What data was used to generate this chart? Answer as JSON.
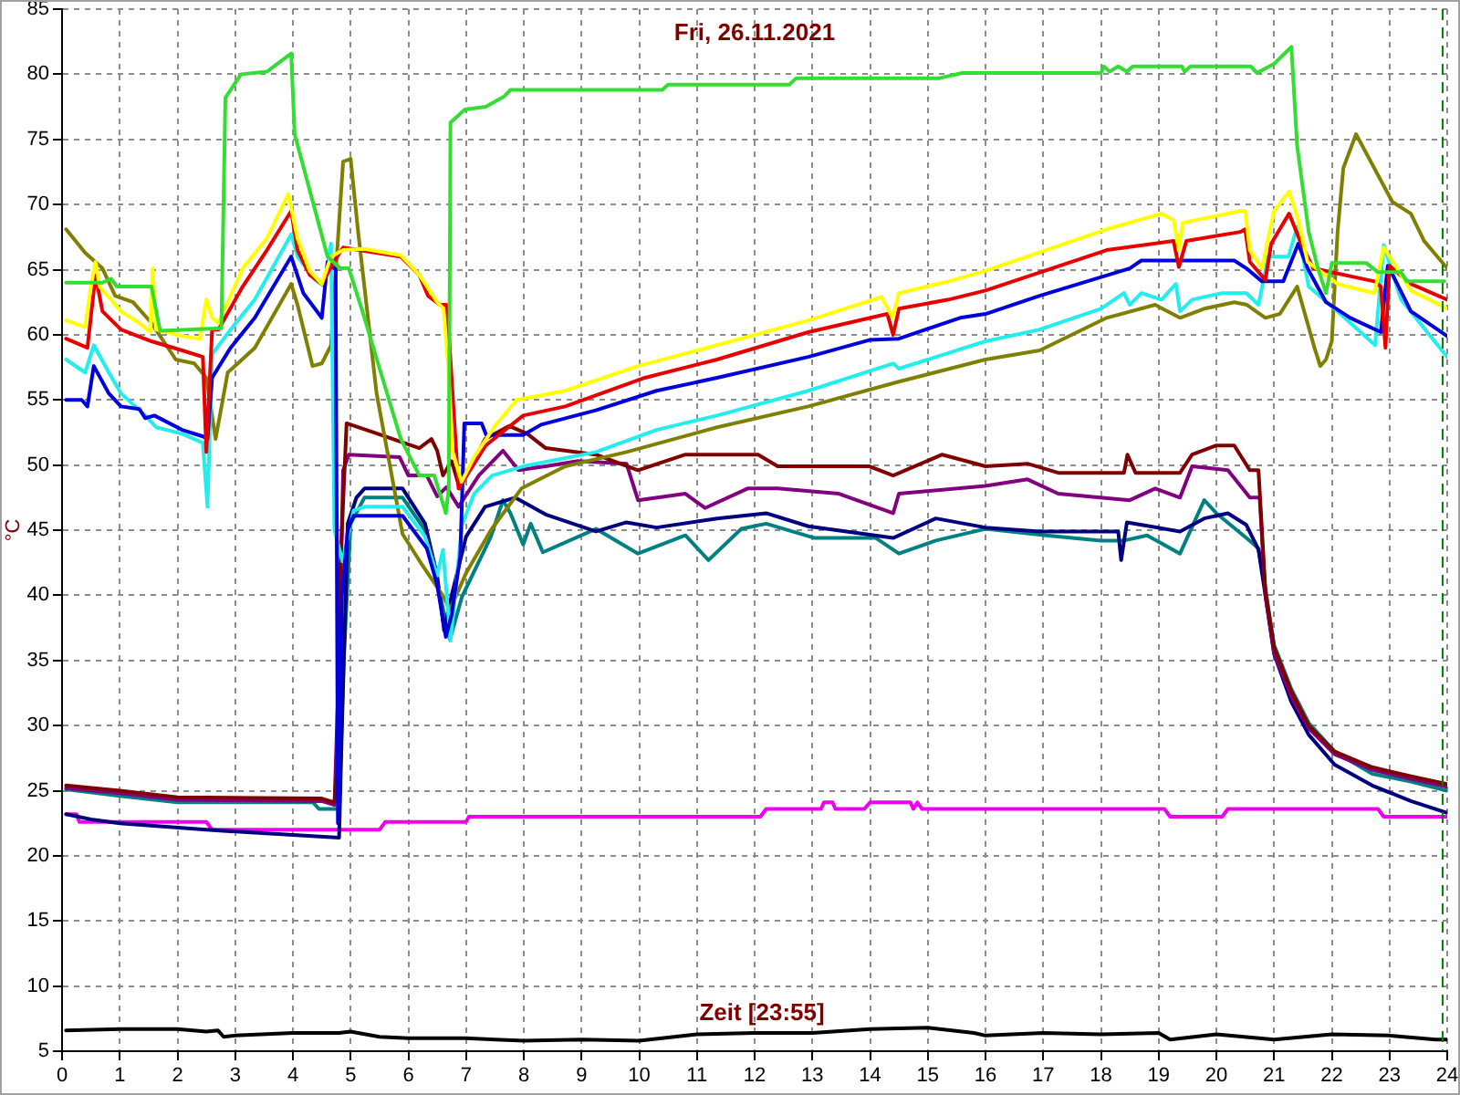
{
  "chart_data": {
    "type": "line",
    "title": "Fri, 26.11.2021",
    "xlabel": "Zeit [23:55]",
    "ylabel": "°C",
    "xlim": [
      0,
      24
    ],
    "ylim": [
      5,
      85
    ],
    "xticks": [
      0,
      1,
      2,
      3,
      4,
      5,
      6,
      7,
      8,
      9,
      10,
      11,
      12,
      13,
      14,
      15,
      16,
      17,
      18,
      19,
      20,
      21,
      22,
      23,
      24
    ],
    "yticks": [
      5,
      10,
      15,
      20,
      25,
      30,
      35,
      40,
      45,
      50,
      55,
      60,
      65,
      70,
      75,
      80,
      85
    ],
    "grid": true,
    "ref_lines": [
      {
        "axis": "x",
        "value": 23.92,
        "color": "#008000",
        "line_style": "dashed"
      }
    ],
    "series": [
      {
        "color": "#33dd33",
        "x": [
          0.07,
          0.7,
          0.85,
          0.95,
          1.55,
          1.7,
          2.76,
          2.83,
          3.1,
          3.55,
          3.7,
          3.97,
          4.03,
          4.4,
          4.6,
          4.82,
          4.97,
          5.24,
          5.55,
          5.87,
          6.19,
          6.45,
          6.65,
          6.7,
          6.73,
          6.98,
          7.34,
          7.66,
          7.77,
          10.4,
          10.5,
          12.6,
          12.72,
          15.2,
          15.6,
          18.0,
          18.05,
          18.15,
          18.3,
          18.45,
          18.55,
          19.4,
          19.45,
          19.55,
          20.6,
          20.7,
          21.0,
          21.3,
          21.4,
          21.6,
          21.76,
          21.9,
          22.0,
          22.6,
          22.8,
          23.2,
          23.3,
          23.95
        ],
        "values": [
          64.0,
          64.0,
          64.3,
          63.7,
          63.7,
          60.3,
          60.5,
          78.2,
          80.0,
          80.2,
          80.7,
          81.6,
          75.4,
          69.3,
          66.0,
          65.1,
          65.1,
          61.3,
          56.7,
          52.0,
          49.2,
          49.2,
          46.3,
          48.2,
          76.3,
          77.3,
          77.5,
          78.3,
          78.8,
          78.8,
          79.2,
          79.2,
          79.7,
          79.7,
          80.1,
          80.1,
          80.6,
          80.2,
          80.6,
          80.2,
          80.6,
          80.6,
          80.2,
          80.6,
          80.6,
          80.1,
          80.8,
          82.1,
          74.5,
          67.9,
          65.1,
          63.2,
          65.5,
          65.5,
          64.8,
          64.8,
          64.1,
          64.1
        ]
      },
      {
        "color": "#ffff00",
        "x": [
          0.07,
          0.4,
          0.5,
          0.58,
          0.65,
          1.02,
          1.34,
          1.53,
          1.57,
          1.63,
          2.08,
          2.39,
          2.5,
          2.6,
          2.71,
          3.13,
          3.55,
          3.92,
          4.08,
          4.29,
          4.5,
          4.66,
          4.87,
          5.24,
          5.87,
          6.19,
          6.5,
          6.61,
          6.69,
          6.77,
          6.92,
          7.14,
          7.5,
          7.88,
          8.72,
          9.98,
          11.35,
          12.93,
          14.2,
          14.39,
          14.5,
          15.36,
          16.0,
          18.1,
          19.05,
          19.26,
          19.35,
          19.42,
          20.42,
          20.5,
          20.58,
          20.79,
          21.0,
          21.26,
          21.42,
          21.58,
          22.1,
          22.74,
          22.9,
          23.06,
          23.37,
          24
        ],
        "values": [
          61.1,
          60.6,
          63.7,
          65.6,
          63.7,
          61.8,
          60.9,
          60.2,
          65.1,
          60.4,
          59.9,
          59.7,
          62.7,
          61.3,
          60.9,
          65.1,
          67.4,
          70.8,
          67.4,
          64.9,
          63.9,
          66.0,
          66.5,
          66.6,
          66.1,
          64.6,
          62.5,
          62.0,
          57.6,
          51.0,
          48.7,
          50.6,
          53.0,
          55.0,
          55.7,
          57.6,
          59.2,
          61.1,
          62.9,
          61.3,
          63.2,
          64.1,
          64.9,
          68.1,
          69.3,
          68.8,
          66.5,
          68.6,
          69.5,
          69.5,
          66.5,
          65.1,
          69.5,
          71.0,
          68.8,
          65.6,
          63.9,
          63.2,
          66.7,
          65.6,
          63.4,
          62.0
        ]
      },
      {
        "color": "#e60000",
        "x": [
          0.07,
          0.44,
          0.58,
          0.7,
          1.02,
          1.55,
          2.08,
          2.44,
          2.5,
          2.6,
          2.71,
          3.13,
          3.55,
          3.97,
          4.08,
          4.29,
          4.5,
          4.71,
          4.87,
          5.87,
          6.19,
          6.34,
          6.55,
          6.66,
          6.71,
          6.87,
          7.14,
          7.34,
          7.99,
          8.72,
          10.1,
          11.35,
          12.93,
          14.3,
          14.4,
          14.5,
          15.36,
          16.0,
          18.1,
          19.26,
          19.35,
          19.48,
          20.42,
          20.5,
          20.58,
          20.85,
          20.95,
          21.26,
          21.47,
          21.68,
          22.74,
          22.85,
          22.93,
          23.0,
          23.37,
          24
        ],
        "values": [
          59.7,
          59.0,
          64.6,
          61.8,
          60.4,
          59.5,
          58.8,
          58.3,
          51.0,
          60.4,
          60.4,
          63.7,
          66.5,
          69.5,
          66.5,
          64.6,
          63.9,
          65.6,
          66.7,
          66.0,
          64.6,
          63.0,
          62.3,
          62.3,
          59.5,
          48.2,
          50.1,
          51.5,
          53.8,
          54.5,
          56.7,
          58.1,
          60.2,
          61.6,
          60.0,
          62.0,
          62.7,
          63.4,
          66.5,
          67.2,
          65.2,
          67.2,
          67.9,
          68.1,
          65.6,
          64.2,
          67.0,
          69.3,
          67.0,
          65.1,
          64.1,
          63.7,
          59.0,
          65.3,
          63.9,
          62.7
        ]
      },
      {
        "color": "#0000dd",
        "x": [
          0.07,
          0.34,
          0.44,
          0.55,
          0.81,
          1.02,
          1.34,
          1.44,
          1.6,
          2.08,
          2.44,
          2.52,
          2.6,
          2.92,
          3.34,
          3.97,
          4.18,
          4.5,
          4.6,
          4.74,
          4.78,
          4.85,
          4.95,
          5.05,
          5.9,
          6.32,
          6.5,
          6.65,
          6.75,
          6.9,
          6.97,
          7.27,
          7.35,
          7.99,
          8.3,
          9.25,
          10.3,
          11.35,
          12.93,
          13.99,
          14.5,
          15.56,
          16.0,
          16.94,
          18.5,
          18.7,
          20.31,
          20.52,
          20.79,
          21.16,
          21.42,
          21.58,
          21.9,
          22.32,
          22.85,
          22.97,
          23.1,
          23.37,
          24
        ],
        "values": [
          55.0,
          55.0,
          54.5,
          57.6,
          55.5,
          54.5,
          54.3,
          53.6,
          53.8,
          52.7,
          52.2,
          52.0,
          56.7,
          59.0,
          61.3,
          66.0,
          63.2,
          61.3,
          65.6,
          65.0,
          22.5,
          40.0,
          45.0,
          46.1,
          46.1,
          43.6,
          40.8,
          36.8,
          38.5,
          43.0,
          53.2,
          53.2,
          52.3,
          52.3,
          53.1,
          54.2,
          55.7,
          56.7,
          58.3,
          59.6,
          59.7,
          61.3,
          61.6,
          63.0,
          65.1,
          65.7,
          65.7,
          65.1,
          64.1,
          64.1,
          67.0,
          65.1,
          62.5,
          61.3,
          60.2,
          65.3,
          64.2,
          61.8,
          59.9
        ]
      },
      {
        "color": "#22eeee",
        "x": [
          0.07,
          0.4,
          0.55,
          0.81,
          1.02,
          1.44,
          1.63,
          2.08,
          2.44,
          2.52,
          2.6,
          2.92,
          3.34,
          3.97,
          4.08,
          4.39,
          4.55,
          4.66,
          4.72,
          4.86,
          5.05,
          5.24,
          5.9,
          6.29,
          6.5,
          6.6,
          6.73,
          6.93,
          7.14,
          7.45,
          7.99,
          9.25,
          10.3,
          11.35,
          12.93,
          14.4,
          14.5,
          16.0,
          16.94,
          18.0,
          18.4,
          18.5,
          18.7,
          19.05,
          19.3,
          19.37,
          19.58,
          20.1,
          20.52,
          20.73,
          20.9,
          21.25,
          21.4,
          21.6,
          22.1,
          22.75,
          22.9,
          23.2,
          24
        ],
        "values": [
          58.1,
          57.1,
          59.2,
          57.1,
          55.5,
          53.8,
          52.9,
          52.4,
          51.7,
          46.8,
          58.5,
          60.4,
          62.7,
          67.7,
          66.0,
          64.2,
          63.7,
          67.0,
          45.0,
          42.6,
          46.5,
          46.8,
          46.8,
          44.5,
          41.5,
          43.5,
          36.5,
          45.4,
          47.8,
          49.2,
          49.9,
          51.0,
          52.7,
          53.8,
          55.7,
          57.8,
          57.4,
          59.5,
          60.4,
          62.0,
          63.2,
          62.3,
          63.2,
          62.7,
          63.9,
          61.8,
          62.7,
          63.2,
          63.2,
          62.3,
          66.0,
          66.0,
          68.3,
          63.7,
          61.8,
          59.2,
          66.9,
          62.7,
          58.3
        ]
      },
      {
        "color": "#808000",
        "x": [
          0.07,
          0.4,
          0.7,
          0.92,
          1.23,
          1.55,
          1.97,
          2.29,
          2.5,
          2.66,
          2.87,
          3.34,
          3.97,
          4.08,
          4.34,
          4.5,
          4.66,
          4.76,
          4.87,
          5.0,
          5.13,
          5.45,
          5.9,
          6.2,
          6.61,
          6.72,
          7.0,
          7.43,
          7.96,
          8.27,
          8.72,
          9.78,
          11.35,
          12.93,
          14.5,
          16.0,
          16.94,
          18.1,
          18.94,
          19.37,
          19.79,
          20.31,
          20.53,
          20.85,
          21.1,
          21.4,
          21.7,
          21.8,
          21.9,
          22.0,
          22.1,
          22.2,
          22.42,
          23.05,
          23.37,
          23.6,
          24
        ],
        "values": [
          68.1,
          66.3,
          65.1,
          63.0,
          62.5,
          60.9,
          58.1,
          57.8,
          56.7,
          52.0,
          57.1,
          59.0,
          63.9,
          62.3,
          57.6,
          57.8,
          59.2,
          66.0,
          73.3,
          73.5,
          67.9,
          55.5,
          44.7,
          42.6,
          39.9,
          38.9,
          41.7,
          45.0,
          48.2,
          48.9,
          49.9,
          51.0,
          52.9,
          54.5,
          56.4,
          58.1,
          58.8,
          61.3,
          62.3,
          61.3,
          62.0,
          62.5,
          62.3,
          61.3,
          61.6,
          63.7,
          59.0,
          57.6,
          58.1,
          59.5,
          67.9,
          72.8,
          75.4,
          70.2,
          69.3,
          67.2,
          65.1
        ]
      },
      {
        "color": "#800000",
        "x": [
          0.07,
          1.0,
          2.0,
          4.5,
          4.72,
          4.76,
          4.8,
          4.93,
          5.4,
          6.19,
          6.4,
          6.5,
          6.6,
          6.75,
          6.89,
          7.33,
          7.75,
          8.06,
          8.38,
          9.25,
          9.98,
          10.8,
          12.06,
          12.4,
          13.99,
          14.4,
          15.25,
          16.0,
          16.73,
          17.26,
          18.4,
          18.46,
          18.6,
          19.37,
          19.58,
          20.0,
          20.31,
          20.58,
          20.73,
          20.85,
          21.0,
          21.3,
          21.6,
          22.05,
          22.7,
          23.37,
          24
        ],
        "values": [
          25.4,
          25.0,
          24.5,
          24.4,
          24.1,
          26.5,
          40.0,
          53.2,
          52.5,
          51.3,
          52.0,
          51.1,
          49.2,
          50.3,
          48.2,
          52.0,
          53.0,
          52.4,
          51.3,
          50.8,
          49.6,
          50.8,
          50.8,
          49.9,
          49.9,
          49.2,
          50.8,
          49.9,
          50.1,
          49.4,
          49.4,
          50.8,
          49.4,
          49.4,
          50.8,
          51.5,
          51.5,
          49.6,
          49.6,
          40.3,
          36.0,
          32.6,
          30.0,
          28.0,
          26.8,
          26.1,
          25.5
        ]
      },
      {
        "color": "#800080",
        "x": [
          0.07,
          1.0,
          2.0,
          4.5,
          4.72,
          4.8,
          4.87,
          4.97,
          5.85,
          6.0,
          6.32,
          6.5,
          6.66,
          6.87,
          7.22,
          7.64,
          7.91,
          8.38,
          8.94,
          9.78,
          9.98,
          10.8,
          11.14,
          11.88,
          12.4,
          13.46,
          14.4,
          14.5,
          16.0,
          16.73,
          17.26,
          18.5,
          18.94,
          19.37,
          19.58,
          20.2,
          20.58,
          20.75,
          20.85,
          21.0,
          21.3,
          21.6,
          22.05,
          22.7,
          23.37,
          24
        ],
        "values": [
          25.2,
          24.8,
          24.3,
          24.2,
          23.9,
          35.0,
          49.6,
          50.8,
          50.6,
          49.2,
          49.2,
          47.6,
          48.3,
          46.8,
          49.2,
          51.1,
          49.6,
          49.9,
          50.3,
          50.1,
          47.3,
          47.8,
          46.7,
          48.2,
          48.2,
          47.8,
          46.3,
          47.8,
          48.4,
          48.9,
          47.8,
          47.3,
          48.2,
          47.5,
          49.9,
          49.6,
          47.5,
          47.5,
          40.0,
          35.6,
          32.2,
          29.8,
          27.8,
          26.6,
          25.9,
          25.3
        ]
      },
      {
        "color": "#000080",
        "x": [
          0.07,
          0.5,
          1.0,
          2.5,
          4.0,
          4.8,
          4.85,
          4.95,
          5.1,
          5.24,
          5.9,
          6.29,
          6.5,
          6.62,
          6.75,
          7.0,
          7.33,
          7.85,
          8.38,
          9.25,
          9.78,
          10.3,
          11.35,
          12.2,
          12.93,
          14.4,
          15.14,
          16.0,
          16.94,
          18.3,
          18.35,
          18.45,
          19.37,
          19.79,
          20.2,
          20.52,
          20.73,
          20.85,
          21.0,
          21.3,
          21.6,
          22.05,
          22.7,
          23.37,
          24
        ],
        "values": [
          23.2,
          22.8,
          22.5,
          22.0,
          21.6,
          21.4,
          30.0,
          45.5,
          47.5,
          48.2,
          48.2,
          45.5,
          41.5,
          37.3,
          40.0,
          44.5,
          46.8,
          47.5,
          46.2,
          44.9,
          45.6,
          45.2,
          45.9,
          46.3,
          45.3,
          44.4,
          45.9,
          45.2,
          44.9,
          44.9,
          42.7,
          45.6,
          44.9,
          45.9,
          46.3,
          45.4,
          43.5,
          40.0,
          35.5,
          31.8,
          29.3,
          27.0,
          25.4,
          24.2,
          23.3
        ]
      },
      {
        "color": "#008080",
        "x": [
          0.07,
          1.0,
          2.0,
          4.35,
          4.45,
          4.8,
          4.88,
          5.0,
          5.24,
          5.9,
          6.29,
          6.5,
          6.72,
          6.93,
          7.43,
          7.64,
          7.77,
          7.99,
          8.12,
          8.33,
          9.25,
          9.98,
          10.8,
          11.2,
          11.77,
          12.2,
          13.04,
          14.1,
          14.5,
          15.14,
          16.0,
          17.05,
          18.0,
          18.4,
          18.8,
          19.37,
          19.79,
          20.0,
          20.52,
          20.73,
          20.85,
          21.0,
          21.3,
          21.6,
          22.05,
          22.7,
          23.37,
          24
        ],
        "values": [
          25.1,
          24.6,
          24.1,
          24.1,
          23.6,
          23.6,
          35.0,
          45.5,
          47.5,
          47.5,
          45.0,
          41.0,
          36.6,
          39.9,
          44.5,
          47.3,
          46.3,
          43.9,
          45.5,
          43.3,
          45.1,
          43.2,
          44.6,
          42.7,
          45.1,
          45.5,
          44.4,
          44.4,
          43.2,
          44.2,
          45.1,
          44.6,
          44.2,
          44.2,
          44.6,
          43.2,
          47.3,
          46.3,
          44.4,
          43.6,
          40.5,
          36.2,
          32.8,
          30.2,
          28.0,
          26.3,
          25.7,
          25.0
        ]
      },
      {
        "color": "#ee00ee",
        "x": [
          0.07,
          0.25,
          0.3,
          2.5,
          2.6,
          5.5,
          5.6,
          7.0,
          7.05,
          12.1,
          12.2,
          13.15,
          13.2,
          13.35,
          13.4,
          13.9,
          14.0,
          14.7,
          14.75,
          14.82,
          14.9,
          19.1,
          19.2,
          20.1,
          20.2,
          22.8,
          22.9,
          24
        ],
        "values": [
          23.2,
          23.2,
          22.6,
          22.6,
          22.0,
          22.0,
          22.6,
          22.6,
          23.0,
          23.0,
          23.6,
          23.6,
          24.1,
          24.1,
          23.6,
          23.6,
          24.1,
          24.1,
          23.6,
          24.1,
          23.6,
          23.6,
          23.0,
          23.0,
          23.6,
          23.6,
          23.0,
          23.0
        ]
      },
      {
        "color": "#000000",
        "x": [
          0.07,
          1.0,
          2.0,
          2.5,
          2.7,
          2.8,
          3.0,
          4.0,
          4.8,
          5.0,
          5.5,
          6.0,
          7.0,
          7.5,
          8.0,
          9.0,
          10.0,
          11.0,
          12.0,
          13.0,
          14.0,
          15.0,
          15.8,
          16.0,
          17.0,
          18.0,
          19.0,
          19.2,
          20.0,
          21.0,
          22.0,
          23.0,
          23.8,
          24
        ],
        "values": [
          6.6,
          6.7,
          6.7,
          6.5,
          6.6,
          6.1,
          6.2,
          6.4,
          6.4,
          6.5,
          6.1,
          6.0,
          6.0,
          5.9,
          5.8,
          5.9,
          5.8,
          6.3,
          6.4,
          6.4,
          6.7,
          6.8,
          6.4,
          6.2,
          6.4,
          6.3,
          6.4,
          5.9,
          6.3,
          5.9,
          6.3,
          6.2,
          5.9,
          5.9
        ]
      }
    ]
  }
}
